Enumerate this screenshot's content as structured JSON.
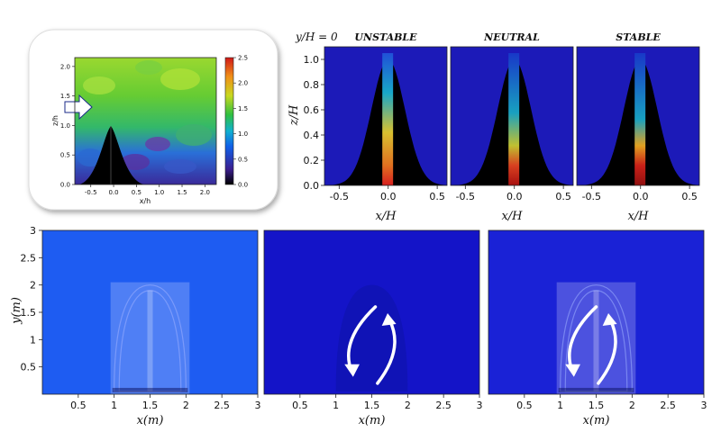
{
  "chart_data": [
    {
      "type": "heatmap",
      "panel": "inset",
      "xlabel": "x/h",
      "ylabel": "z/h",
      "xticks": [
        "-0.5",
        "0.0",
        "0.5",
        "1.0",
        "1.5",
        "2.0"
      ],
      "yticks": [
        "0.0",
        "0.5",
        "1.0",
        "1.5",
        "2.0"
      ],
      "xlim": [
        -0.85,
        2.25
      ],
      "ylim": [
        0,
        2.15
      ],
      "colorbar_ticks": [
        "0.0",
        "0.5",
        "1.0",
        "1.5",
        "2.0",
        "2.5"
      ],
      "colorbar_range": [
        0,
        2.5
      ]
    },
    {
      "type": "heatmap",
      "panel": "profiles",
      "header": "y/H = 0",
      "panel_titles": [
        "UNSTABLE",
        "NEUTRAL",
        "STABLE"
      ],
      "xlabel": "x/H",
      "ylabel": "z/H",
      "xticks": [
        "-0.5",
        "0.0",
        "0.5"
      ],
      "yticks": [
        "0.0",
        "0.2",
        "0.4",
        "0.6",
        "0.8",
        "1.0"
      ],
      "xlim": [
        -0.65,
        0.6
      ],
      "ylim": [
        0,
        1.1
      ]
    },
    {
      "type": "heatmap",
      "panel": "planes",
      "xlabel": "x(m)",
      "ylabel": "y(m)",
      "xticks": [
        "0.5",
        "1",
        "1.5",
        "2",
        "2.5",
        "3"
      ],
      "yticks": [
        "0.5",
        "1",
        "1.5",
        "2",
        "2.5",
        "3"
      ],
      "xlim": [
        0,
        3
      ],
      "ylim": [
        0,
        3
      ],
      "panel_colors": [
        "#1e5cf2",
        "#1414c8",
        "#1a22d6"
      ]
    }
  ]
}
